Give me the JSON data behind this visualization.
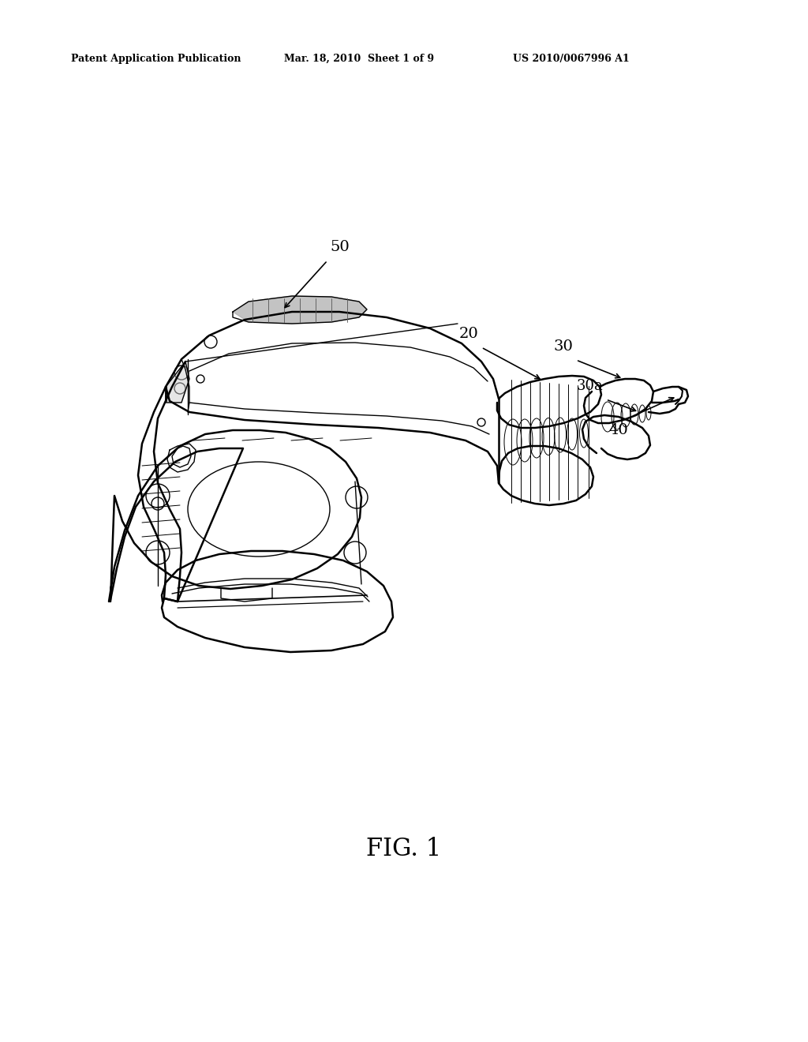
{
  "background_color": "#ffffff",
  "header_left": "Patent Application Publication",
  "header_mid": "Mar. 18, 2010  Sheet 1 of 9",
  "header_right": "US 2010/0067996 A1",
  "fig_label": "FIG. 1",
  "line_color": "#000000",
  "text_color": "#000000",
  "lw_main": 1.8,
  "lw_thin": 1.0,
  "lw_detail": 0.7
}
